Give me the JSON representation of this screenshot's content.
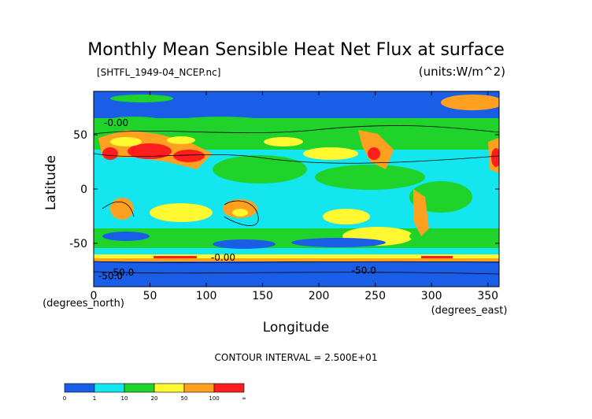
{
  "chart_data": {
    "type": "heatmap",
    "title": "Monthly Mean Sensible Heat Net Flux at surface",
    "subtitle_left": "[SHTFL_1949-04_NCEP.nc]",
    "subtitle_right": "(units:W/m^2)",
    "xlabel": "Longitude",
    "ylabel": "Latitude",
    "x_unit_label": "(degrees_east)",
    "y_unit_label": "(degrees_north)",
    "xlim": [
      0,
      360
    ],
    "ylim": [
      -90,
      90
    ],
    "x_ticks": [
      0,
      50,
      100,
      150,
      200,
      250,
      300,
      350
    ],
    "y_ticks": [
      50,
      0,
      -50
    ],
    "contour_interval_text": "CONTOUR INTERVAL = 2.500E+01",
    "contour_labels": [
      {
        "text": "-50.0",
        "lon": 15,
        "lat": -83
      },
      {
        "text": "-50.0",
        "lon": 25,
        "lat": -80
      },
      {
        "text": "-0.00",
        "lon": 115,
        "lat": -66
      },
      {
        "text": "-50.0",
        "lon": 240,
        "lat": -78
      },
      {
        "text": "-0.00",
        "lon": 20,
        "lat": 58
      }
    ],
    "colorbar": {
      "boundaries": [
        "0",
        "1",
        "10",
        "20",
        "50",
        "100",
        "∞"
      ],
      "colors": [
        "#1a5ee8",
        "#14e6f0",
        "#1fd32a",
        "#fff830",
        "#ffa020",
        "#ff1e1e"
      ]
    },
    "background_color": "#1a5ee8"
  }
}
